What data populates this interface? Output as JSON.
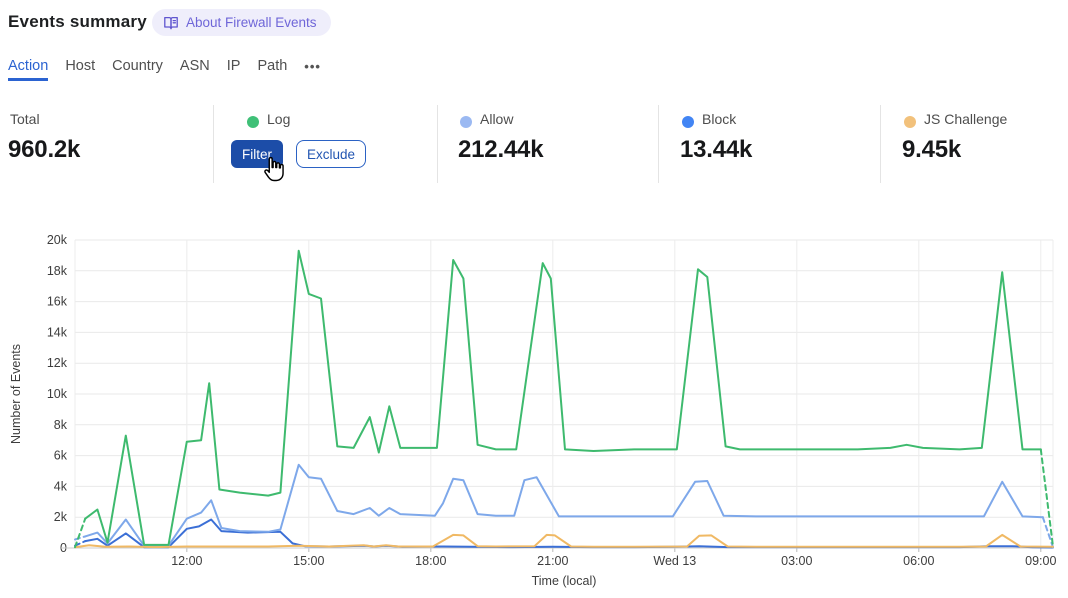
{
  "header": {
    "title": "Events summary",
    "badge": {
      "label": "About Firewall Events",
      "icon": "book-icon",
      "text_color": "#6f66d8",
      "bg_color": "#efeefb"
    }
  },
  "tabs": {
    "items": [
      {
        "label": "Action",
        "active": true
      },
      {
        "label": "Host",
        "active": false
      },
      {
        "label": "Country",
        "active": false
      },
      {
        "label": "ASN",
        "active": false
      },
      {
        "label": "IP",
        "active": false
      },
      {
        "label": "Path",
        "active": false
      }
    ],
    "more": "•••",
    "more_icon": "ellipsis-icon",
    "active_color": "#2b63d1"
  },
  "stats": {
    "total": {
      "label": "Total",
      "value": "960.2k"
    },
    "cards": [
      {
        "label": "Log",
        "color": "#3fc077",
        "value": "",
        "buttons": {
          "filter": "Filter",
          "exclude": "Exclude"
        }
      },
      {
        "label": "Allow",
        "color": "#9bb9f2",
        "value": "212.44k"
      },
      {
        "label": "Block",
        "color": "#4285f4",
        "value": "13.44k"
      },
      {
        "label": "JS Challenge",
        "color": "#f2c17b",
        "value": "9.45k"
      }
    ]
  },
  "cursor": {
    "icon": "hand-pointer-icon"
  },
  "chart_data": {
    "type": "line",
    "title": "",
    "xlabel": "Time (local)",
    "ylabel": "Number of Events",
    "grid": true,
    "legend_position": "top-stat-cards",
    "values_unit": "thousands of events",
    "x_unit": "local time in hours (24 = Wed 13 00:00)",
    "xlim_hours": [
      9.25,
      33.3
    ],
    "ylim_k": [
      0,
      20
    ],
    "y_ticks": [
      {
        "v": 0,
        "label": "0"
      },
      {
        "v": 2,
        "label": "2k"
      },
      {
        "v": 4,
        "label": "4k"
      },
      {
        "v": 6,
        "label": "6k"
      },
      {
        "v": 8,
        "label": "8k"
      },
      {
        "v": 10,
        "label": "10k"
      },
      {
        "v": 12,
        "label": "12k"
      },
      {
        "v": 14,
        "label": "14k"
      },
      {
        "v": 16,
        "label": "16k"
      },
      {
        "v": 18,
        "label": "18k"
      },
      {
        "v": 20,
        "label": "20k"
      }
    ],
    "x_ticks": [
      {
        "t": 12,
        "label": "12:00"
      },
      {
        "t": 15,
        "label": "15:00"
      },
      {
        "t": 18,
        "label": "18:00"
      },
      {
        "t": 21,
        "label": "21:00"
      },
      {
        "t": 24,
        "label": "Wed 13"
      },
      {
        "t": 27,
        "label": "03:00"
      },
      {
        "t": 30,
        "label": "06:00"
      },
      {
        "t": 33,
        "label": "09:00"
      }
    ],
    "series": [
      {
        "name": "Block",
        "color": "#3b6fd6",
        "lead_dash": [
          [
            9.25,
            0.15
          ],
          [
            9.5,
            0.45
          ]
        ],
        "points": [
          [
            9.5,
            0.45
          ],
          [
            9.8,
            0.6
          ],
          [
            10.05,
            0.15
          ],
          [
            10.5,
            0.95
          ],
          [
            10.95,
            0.05
          ],
          [
            11.55,
            0.05
          ],
          [
            12.0,
            1.25
          ],
          [
            12.3,
            1.4
          ],
          [
            12.6,
            1.85
          ],
          [
            12.85,
            1.1
          ],
          [
            13.5,
            1.0
          ],
          [
            14.3,
            1.05
          ],
          [
            14.6,
            0.3
          ],
          [
            14.9,
            0.12
          ],
          [
            15.5,
            0.1
          ],
          [
            16.4,
            0.15
          ],
          [
            16.6,
            0.1
          ],
          [
            16.9,
            0.15
          ],
          [
            17.3,
            0.08
          ],
          [
            18.3,
            0.1
          ],
          [
            19.0,
            0.08
          ],
          [
            20.0,
            0.06
          ],
          [
            21.0,
            0.08
          ],
          [
            22.0,
            0.06
          ],
          [
            23.0,
            0.06
          ],
          [
            24.0,
            0.08
          ],
          [
            24.6,
            0.12
          ],
          [
            25.3,
            0.06
          ],
          [
            26.5,
            0.06
          ],
          [
            28.0,
            0.06
          ],
          [
            29.5,
            0.06
          ],
          [
            31.0,
            0.06
          ],
          [
            31.7,
            0.12
          ],
          [
            32.3,
            0.12
          ],
          [
            32.8,
            0.05
          ],
          [
            33.3,
            0.03
          ]
        ]
      },
      {
        "name": "Allow",
        "color": "#7ea8ea",
        "lead_dash": [
          [
            9.25,
            0.55
          ],
          [
            9.5,
            0.75
          ]
        ],
        "points": [
          [
            9.5,
            0.75
          ],
          [
            9.8,
            1.0
          ],
          [
            10.05,
            0.3
          ],
          [
            10.5,
            1.85
          ],
          [
            10.95,
            0.15
          ],
          [
            11.55,
            0.15
          ],
          [
            12.0,
            1.9
          ],
          [
            12.35,
            2.3
          ],
          [
            12.6,
            3.1
          ],
          [
            12.85,
            1.3
          ],
          [
            13.3,
            1.1
          ],
          [
            14.0,
            1.05
          ],
          [
            14.3,
            1.2
          ],
          [
            14.75,
            5.4
          ],
          [
            15.0,
            4.6
          ],
          [
            15.3,
            4.5
          ],
          [
            15.7,
            2.4
          ],
          [
            16.1,
            2.2
          ],
          [
            16.5,
            2.6
          ],
          [
            16.72,
            2.1
          ],
          [
            16.98,
            2.6
          ],
          [
            17.25,
            2.2
          ],
          [
            18.1,
            2.1
          ],
          [
            18.3,
            2.9
          ],
          [
            18.55,
            4.5
          ],
          [
            18.8,
            4.4
          ],
          [
            19.15,
            2.2
          ],
          [
            19.6,
            2.1
          ],
          [
            20.05,
            2.1
          ],
          [
            20.3,
            4.4
          ],
          [
            20.6,
            4.6
          ],
          [
            21.15,
            2.05
          ],
          [
            22.0,
            2.05
          ],
          [
            23.0,
            2.05
          ],
          [
            23.95,
            2.05
          ],
          [
            24.5,
            4.3
          ],
          [
            24.8,
            4.35
          ],
          [
            25.2,
            2.1
          ],
          [
            26.0,
            2.05
          ],
          [
            27.0,
            2.05
          ],
          [
            28.0,
            2.05
          ],
          [
            29.0,
            2.05
          ],
          [
            30.0,
            2.05
          ],
          [
            31.0,
            2.05
          ],
          [
            31.6,
            2.05
          ],
          [
            32.05,
            4.3
          ],
          [
            32.55,
            2.05
          ],
          [
            33.05,
            2.0
          ]
        ],
        "tail_dash": [
          [
            33.05,
            2.0
          ],
          [
            33.3,
            0.05
          ]
        ]
      },
      {
        "name": "JS Challenge",
        "color": "#f0b964",
        "points": [
          [
            9.25,
            0.05
          ],
          [
            9.6,
            0.18
          ],
          [
            10.0,
            0.08
          ],
          [
            10.6,
            0.1
          ],
          [
            11.2,
            0.06
          ],
          [
            12.0,
            0.1
          ],
          [
            13.0,
            0.1
          ],
          [
            14.0,
            0.1
          ],
          [
            14.75,
            0.15
          ],
          [
            15.5,
            0.1
          ],
          [
            16.35,
            0.18
          ],
          [
            16.6,
            0.1
          ],
          [
            16.9,
            0.18
          ],
          [
            17.2,
            0.1
          ],
          [
            18.05,
            0.1
          ],
          [
            18.55,
            0.85
          ],
          [
            18.8,
            0.82
          ],
          [
            19.15,
            0.12
          ],
          [
            19.6,
            0.1
          ],
          [
            20.55,
            0.12
          ],
          [
            20.85,
            0.85
          ],
          [
            21.05,
            0.82
          ],
          [
            21.45,
            0.1
          ],
          [
            22.0,
            0.08
          ],
          [
            23.0,
            0.08
          ],
          [
            24.3,
            0.1
          ],
          [
            24.6,
            0.8
          ],
          [
            24.9,
            0.82
          ],
          [
            25.3,
            0.1
          ],
          [
            26.0,
            0.08
          ],
          [
            27.0,
            0.08
          ],
          [
            28.0,
            0.08
          ],
          [
            29.0,
            0.08
          ],
          [
            30.0,
            0.08
          ],
          [
            31.0,
            0.08
          ],
          [
            31.65,
            0.1
          ],
          [
            32.05,
            0.85
          ],
          [
            32.5,
            0.1
          ],
          [
            33.3,
            0.08
          ]
        ]
      },
      {
        "name": "Log",
        "color": "#3eba6e",
        "lead_dash": [
          [
            9.25,
            0.05
          ],
          [
            9.5,
            1.9
          ]
        ],
        "points": [
          [
            9.5,
            1.9
          ],
          [
            9.8,
            2.5
          ],
          [
            10.05,
            0.35
          ],
          [
            10.5,
            7.3
          ],
          [
            10.95,
            0.2
          ],
          [
            11.55,
            0.2
          ],
          [
            12.0,
            6.9
          ],
          [
            12.35,
            7.0
          ],
          [
            12.55,
            10.7
          ],
          [
            12.8,
            3.8
          ],
          [
            13.3,
            3.6
          ],
          [
            14.0,
            3.4
          ],
          [
            14.3,
            3.6
          ],
          [
            14.75,
            19.3
          ],
          [
            15.0,
            16.5
          ],
          [
            15.3,
            16.2
          ],
          [
            15.7,
            6.6
          ],
          [
            16.1,
            6.5
          ],
          [
            16.5,
            8.5
          ],
          [
            16.72,
            6.2
          ],
          [
            16.98,
            9.2
          ],
          [
            17.25,
            6.5
          ],
          [
            18.15,
            6.5
          ],
          [
            18.55,
            18.7
          ],
          [
            18.8,
            17.5
          ],
          [
            19.15,
            6.7
          ],
          [
            19.6,
            6.4
          ],
          [
            20.1,
            6.4
          ],
          [
            20.75,
            18.5
          ],
          [
            20.95,
            17.5
          ],
          [
            21.3,
            6.4
          ],
          [
            22.0,
            6.3
          ],
          [
            23.0,
            6.4
          ],
          [
            24.05,
            6.4
          ],
          [
            24.57,
            18.1
          ],
          [
            24.8,
            17.6
          ],
          [
            25.25,
            6.6
          ],
          [
            25.6,
            6.4
          ],
          [
            26.5,
            6.4
          ],
          [
            27.5,
            6.4
          ],
          [
            28.5,
            6.4
          ],
          [
            29.3,
            6.5
          ],
          [
            29.7,
            6.7
          ],
          [
            30.1,
            6.5
          ],
          [
            31.0,
            6.4
          ],
          [
            31.55,
            6.5
          ],
          [
            32.05,
            17.9
          ],
          [
            32.55,
            6.4
          ],
          [
            33.0,
            6.4
          ]
        ],
        "tail_dash": [
          [
            33.0,
            6.4
          ],
          [
            33.3,
            0.1
          ]
        ]
      }
    ]
  }
}
